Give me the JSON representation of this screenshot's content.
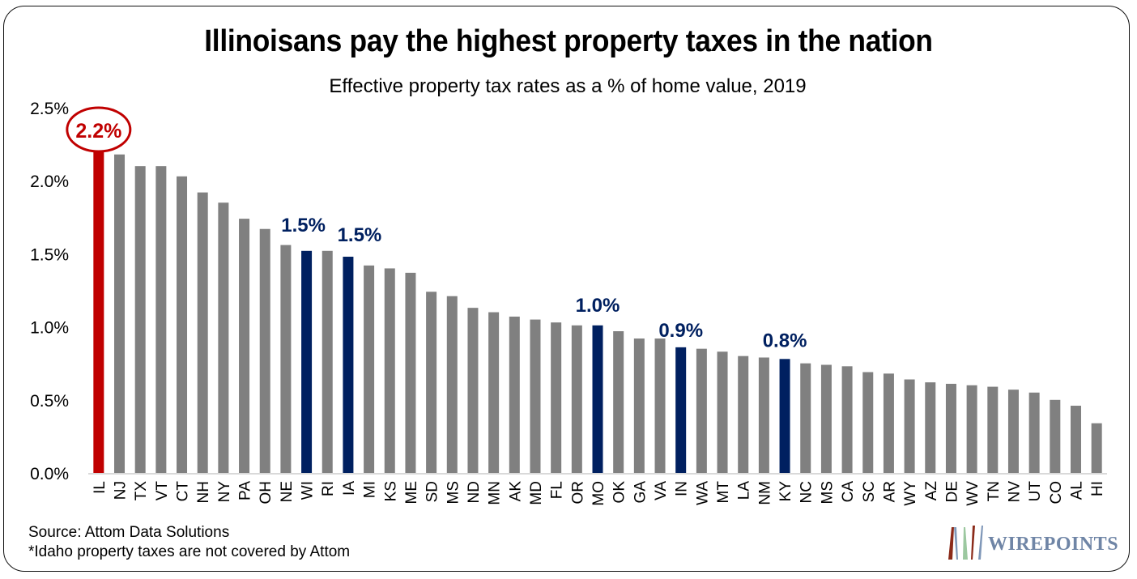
{
  "chart_data": {
    "type": "bar",
    "title": "Illinoisans pay the highest property taxes in the nation",
    "subtitle": "Effective property tax rates as a % of home value, 2019",
    "xlabel": "",
    "ylabel": "",
    "ylim": [
      0,
      2.5
    ],
    "yticks": [
      0.0,
      0.5,
      1.0,
      1.5,
      2.0,
      2.5
    ],
    "ytick_labels": [
      "0.0%",
      "0.5%",
      "1.0%",
      "1.5%",
      "2.0%",
      "2.5%"
    ],
    "grid": false,
    "legend": "none",
    "categories": [
      "IL",
      "NJ",
      "TX",
      "VT",
      "CT",
      "NH",
      "NY",
      "PA",
      "OH",
      "NE",
      "WI",
      "RI",
      "IA",
      "MI",
      "KS",
      "ME",
      "SD",
      "MS",
      "ND",
      "MN",
      "AK",
      "MD",
      "FL",
      "OR",
      "MO",
      "OK",
      "GA",
      "VA",
      "IN",
      "WA",
      "MT",
      "LA",
      "NM",
      "KY",
      "NC",
      "MS",
      "CA",
      "SC",
      "AR",
      "WY",
      "AZ",
      "DE",
      "WV",
      "TN",
      "NV",
      "UT",
      "CO",
      "AL",
      "HI"
    ],
    "values": [
      2.23,
      2.18,
      2.1,
      2.1,
      2.03,
      1.92,
      1.85,
      1.74,
      1.67,
      1.56,
      1.52,
      1.52,
      1.48,
      1.42,
      1.4,
      1.37,
      1.24,
      1.21,
      1.13,
      1.1,
      1.07,
      1.05,
      1.03,
      1.01,
      1.01,
      0.97,
      0.92,
      0.92,
      0.86,
      0.85,
      0.83,
      0.8,
      0.79,
      0.78,
      0.75,
      0.74,
      0.73,
      0.69,
      0.68,
      0.64,
      0.62,
      0.61,
      0.6,
      0.59,
      0.57,
      0.55,
      0.5,
      0.46,
      0.34
    ],
    "highlight": {
      "IL": {
        "color": "#c00000",
        "label": "2.2%",
        "circled": true
      },
      "WI": {
        "color": "#002060",
        "label": "1.5%"
      },
      "IA": {
        "color": "#002060",
        "label": "1.5%"
      },
      "MO": {
        "color": "#002060",
        "label": "1.0%"
      },
      "IN": {
        "color": "#002060",
        "label": "0.9%"
      },
      "KY": {
        "color": "#002060",
        "label": "0.8%"
      }
    },
    "default_color": "#808080",
    "axis_color": "#d9d9d9"
  },
  "footer": {
    "source": "Source: Attom Data Solutions",
    "note": "*Idaho property taxes are not covered by Attom"
  },
  "logo": {
    "text": "WIREPOINTS",
    "stripe_colors": [
      "#8b2b1a",
      "#7f97b8",
      "#9cc8a0",
      "#8b2b1a",
      "#7f97b8"
    ]
  }
}
